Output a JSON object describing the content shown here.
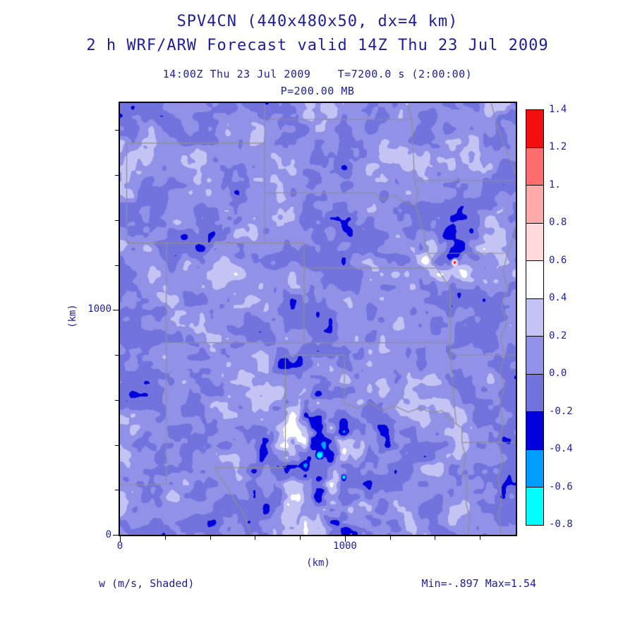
{
  "header": {
    "title": "SPV4CN (440x480x50, dx=4 km)",
    "subtitle": "2 h WRF/ARW Forecast valid 14Z Thu 23 Jul 2009",
    "valid_line": "14:00Z Thu 23 Jul 2009    T=7200.0 s (2:00:00)",
    "level_line": "P=200.00 MB"
  },
  "footer": {
    "field_label": "w (m/s, Shaded)",
    "range_label": "Min=-.897 Max=1.54"
  },
  "colors": {
    "text": "#1e1e96",
    "frame": "#000000",
    "state_line": "#8f8f8f"
  },
  "chart_data": {
    "type": "heatmap",
    "title": "SPV4CN (440x480x50, dx=4 km)",
    "subtitle": "2 h WRF/ARW Forecast valid 14Z Thu 23 Jul 2009",
    "valid_time": "14:00Z Thu 23 Jul 2009",
    "elapsed": "T=7200.0 s (2:00:00)",
    "pressure_level": "P=200.00 MB",
    "variable": "w",
    "units": "m/s",
    "shading_note": "Shaded",
    "grid": "440x480x50",
    "dx_km": 4,
    "min": -0.897,
    "max": 1.54,
    "x_axis": {
      "label": "(km)",
      "range_km": [
        0,
        1760
      ],
      "labeled_ticks": [
        0,
        1000
      ],
      "tick_labels": [
        "0",
        "1000"
      ],
      "minor_tick_km": 200
    },
    "y_axis": {
      "label": "(km)",
      "range_km": [
        0,
        1920
      ],
      "labeled_ticks": [
        0,
        1000
      ],
      "tick_labels": [
        "0",
        "1000"
      ],
      "minor_tick_km": 200
    },
    "colorbar": {
      "boundary_labels_top_to_bottom": [
        "1.4",
        "1.2",
        "1.",
        "0.8",
        "0.6",
        "0.4",
        "0.2",
        "0.0",
        "-0.2",
        "-0.4",
        "-0.6",
        "-0.8"
      ],
      "levels": [
        -0.8,
        -0.6,
        -0.4,
        -0.2,
        0.0,
        0.2,
        0.4,
        0.6,
        0.8,
        1.0,
        1.2,
        1.4
      ],
      "colors_bottom_to_top": [
        "#00ffff",
        "#009cff",
        "#0000dc",
        "#7373de",
        "#9191e8",
        "#c3c3f4",
        "#ffffff",
        "#ffd9d9",
        "#ffaaaa",
        "#ff6e6e",
        "#f20f0f"
      ]
    },
    "map_overlay": "US state borders, central CONUS, gray lines",
    "field_render": {
      "base": 0.055,
      "octaves": [
        {
          "seed": 11,
          "nx": 6,
          "ny": 7,
          "amp": 0.055
        },
        {
          "seed": 23,
          "nx": 14,
          "ny": 15,
          "amp": 0.165
        },
        {
          "seed": 47,
          "nx": 30,
          "ny": 33,
          "amp": 0.15
        },
        {
          "seed": 83,
          "nx": 62,
          "ny": 68,
          "amp": 0.09
        }
      ],
      "hotspots": [
        {
          "u": 0.5,
          "v": 0.8,
          "s": 0.105,
          "k": 1.2
        },
        {
          "u": 0.845,
          "v": 0.37,
          "s": 0.06,
          "k": 1.05
        },
        {
          "u": 0.56,
          "v": 0.93,
          "s": 0.05,
          "k": 0.7
        },
        {
          "u": 0.22,
          "v": 0.5,
          "s": 0.14,
          "k": 0.25
        }
      ],
      "spots": [
        {
          "u": 0.503,
          "v": 0.816,
          "s": 0.006,
          "a": -1.0
        },
        {
          "u": 0.845,
          "v": 0.368,
          "s": 0.0045,
          "a": 1.5
        },
        {
          "u": 0.565,
          "v": 0.865,
          "s": 0.004,
          "a": -0.6
        }
      ],
      "clamp": [
        -0.95,
        1.55
      ]
    },
    "state_borders": [
      [
        [
          0.017,
          0.093
        ],
        [
          0.017,
          0.324
        ]
      ],
      [
        [
          0.017,
          0.093
        ],
        [
          0.366,
          0.093
        ]
      ],
      [
        [
          0.366,
          0.0
        ],
        [
          0.366,
          0.324
        ]
      ],
      [
        [
          0.366,
          0.038
        ],
        [
          0.738,
          0.038
        ]
      ],
      [
        [
          0.728,
          0.0
        ],
        [
          0.736,
          0.038
        ]
      ],
      [
        [
          0.738,
          0.038
        ],
        [
          0.744,
          0.179
        ]
      ],
      [
        [
          0.744,
          0.179
        ],
        [
          1.0,
          0.179
        ]
      ],
      [
        [
          0.938,
          0.0
        ],
        [
          0.955,
          0.06
        ],
        [
          0.978,
          0.115
        ],
        [
          1.0,
          0.165
        ]
      ],
      [
        [
          0.366,
          0.208
        ],
        [
          0.642,
          0.208
        ]
      ],
      [
        [
          0.642,
          0.208
        ],
        [
          0.665,
          0.224
        ],
        [
          0.69,
          0.214
        ],
        [
          0.715,
          0.228
        ],
        [
          0.746,
          0.237
        ]
      ],
      [
        [
          0.744,
          0.179
        ],
        [
          0.753,
          0.205
        ],
        [
          0.746,
          0.237
        ]
      ],
      [
        [
          0.746,
          0.237
        ],
        [
          0.758,
          0.27
        ],
        [
          0.77,
          0.309
        ],
        [
          0.772,
          0.328
        ],
        [
          0.778,
          0.348
        ],
        [
          0.789,
          0.363
        ],
        [
          0.8,
          0.382
        ],
        [
          0.814,
          0.401
        ],
        [
          0.827,
          0.419
        ],
        [
          0.835,
          0.434
        ]
      ],
      [
        [
          0.778,
          0.348
        ],
        [
          0.979,
          0.348
        ]
      ],
      [
        [
          0.979,
          0.348
        ],
        [
          0.995,
          0.31
        ],
        [
          1.0,
          0.285
        ]
      ],
      [
        [
          0.017,
          0.324
        ],
        [
          0.465,
          0.324
        ]
      ],
      [
        [
          0.117,
          0.324
        ],
        [
          0.117,
          0.884
        ]
      ],
      [
        [
          0.0,
          0.884
        ],
        [
          0.117,
          0.884
        ]
      ],
      [
        [
          0.465,
          0.324
        ],
        [
          0.465,
          0.555
        ]
      ],
      [
        [
          0.465,
          0.382
        ],
        [
          0.8,
          0.382
        ]
      ],
      [
        [
          0.117,
          0.555
        ],
        [
          0.835,
          0.555
        ]
      ],
      [
        [
          0.418,
          0.584
        ],
        [
          0.567,
          0.584
        ]
      ],
      [
        [
          0.418,
          0.584
        ],
        [
          0.418,
          0.844
        ]
      ],
      [
        [
          0.567,
          0.584
        ],
        [
          0.567,
          0.696
        ]
      ],
      [
        [
          0.239,
          0.844
        ],
        [
          0.418,
          0.844
        ]
      ],
      [
        [
          0.239,
          0.844
        ],
        [
          0.253,
          0.868
        ],
        [
          0.273,
          0.891
        ],
        [
          0.287,
          0.916
        ],
        [
          0.306,
          0.941
        ],
        [
          0.319,
          0.966
        ],
        [
          0.332,
          1.0
        ]
      ],
      [
        [
          0.567,
          0.696
        ],
        [
          0.6,
          0.707
        ],
        [
          0.632,
          0.695
        ],
        [
          0.663,
          0.712
        ],
        [
          0.695,
          0.702
        ],
        [
          0.728,
          0.716
        ],
        [
          0.758,
          0.706
        ],
        [
          0.79,
          0.718
        ],
        [
          0.813,
          0.712
        ],
        [
          0.832,
          0.731
        ],
        [
          0.85,
          0.744
        ],
        [
          0.864,
          0.752
        ]
      ],
      [
        [
          0.835,
          0.434
        ],
        [
          0.835,
          0.584
        ]
      ],
      [
        [
          0.835,
          0.584
        ],
        [
          1.0,
          0.584
        ]
      ],
      [
        [
          0.835,
          0.584
        ],
        [
          0.841,
          0.65
        ],
        [
          0.847,
          0.72
        ],
        [
          0.85,
          0.744
        ]
      ],
      [
        [
          0.864,
          0.752
        ],
        [
          0.864,
          0.786
        ]
      ],
      [
        [
          0.864,
          0.786
        ],
        [
          1.0,
          0.786
        ]
      ],
      [
        [
          0.864,
          0.786
        ],
        [
          0.873,
          0.82
        ],
        [
          0.868,
          0.855
        ],
        [
          0.878,
          0.89
        ],
        [
          0.874,
          0.925
        ],
        [
          0.884,
          0.962
        ],
        [
          0.879,
          1.0
        ]
      ],
      [
        [
          0.979,
          0.348
        ],
        [
          0.968,
          0.39
        ],
        [
          0.98,
          0.43
        ],
        [
          0.964,
          0.47
        ],
        [
          0.977,
          0.51
        ],
        [
          0.962,
          0.545
        ],
        [
          0.973,
          0.584
        ],
        [
          0.96,
          0.622
        ],
        [
          0.971,
          0.66
        ],
        [
          0.958,
          0.7
        ],
        [
          0.969,
          0.742
        ],
        [
          0.957,
          0.786
        ],
        [
          0.967,
          0.83
        ],
        [
          0.955,
          0.87
        ],
        [
          0.965,
          0.912
        ],
        [
          0.956,
          0.955
        ],
        [
          0.963,
          1.0
        ]
      ]
    ]
  }
}
